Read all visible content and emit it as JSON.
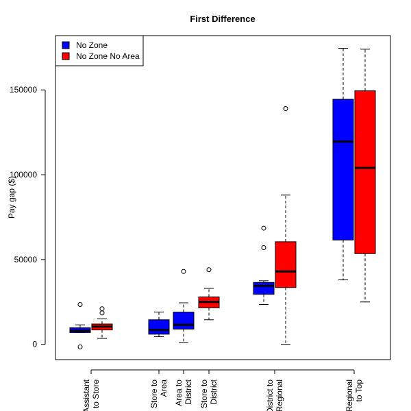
{
  "chart_data": {
    "type": "boxplot",
    "title": "First Difference",
    "xlabel": "",
    "ylabel": "Pay gap ($)",
    "ylim": [
      -9000,
      182000
    ],
    "yticks": [
      0,
      50000,
      100000,
      150000
    ],
    "ytick_labels": [
      "0",
      "50000",
      "100000",
      "150000"
    ],
    "grid": false,
    "legend_placement": "top-left",
    "series": [
      {
        "name": "No Zone",
        "color": "#0000ff"
      },
      {
        "name": "No Zone No Area",
        "color": "#ff0000"
      }
    ],
    "categories": [
      {
        "label": [
          "Assistant",
          "to Store"
        ]
      },
      {
        "label": [
          "Store to",
          "Area"
        ]
      },
      {
        "label": [
          "Area to",
          "District"
        ]
      },
      {
        "label": [
          "Store to",
          "District"
        ]
      },
      {
        "label": [
          "District to",
          "Regional"
        ]
      },
      {
        "label": [
          "Regional",
          "to Top"
        ]
      }
    ],
    "boxes": [
      {
        "series": "No Zone",
        "category": 0,
        "whisker_low": 7000,
        "q1": 7000,
        "median": 8000,
        "q3": 9800,
        "whisker_high": 11500,
        "outliers": [
          23500,
          -1500
        ]
      },
      {
        "series": "No Zone No Area",
        "category": 0,
        "whisker_low": 3500,
        "q1": 8500,
        "median": 10500,
        "q3": 12000,
        "whisker_high": 15000,
        "outliers": [
          21000,
          18500
        ]
      },
      {
        "series": "No Zone",
        "category": 1,
        "whisker_low": 4500,
        "q1": 6000,
        "median": 8500,
        "q3": 14500,
        "whisker_high": 19000,
        "outliers": []
      },
      {
        "series": "No Zone",
        "category": 2,
        "whisker_low": 1000,
        "q1": 9000,
        "median": 11500,
        "q3": 19000,
        "whisker_high": 24500,
        "outliers": [
          43000
        ]
      },
      {
        "series": "No Zone No Area",
        "category": 3,
        "whisker_low": 14500,
        "q1": 21500,
        "median": 25000,
        "q3": 28000,
        "whisker_high": 33000,
        "outliers": [
          44000
        ]
      },
      {
        "series": "No Zone",
        "category": 4,
        "whisker_low": 23500,
        "q1": 29500,
        "median": 34500,
        "q3": 36500,
        "whisker_high": 37500,
        "outliers": [
          68500,
          57000
        ]
      },
      {
        "series": "No Zone No Area",
        "category": 4,
        "whisker_low": 0,
        "q1": 33500,
        "median": 43000,
        "q3": 60500,
        "whisker_high": 88000,
        "outliers": [
          139000
        ]
      },
      {
        "series": "No Zone",
        "category": 5,
        "whisker_low": 38000,
        "q1": 61500,
        "median": 119500,
        "q3": 144500,
        "whisker_high": 174500,
        "outliers": []
      },
      {
        "series": "No Zone No Area",
        "category": 5,
        "whisker_low": 25000,
        "q1": 53500,
        "median": 104000,
        "q3": 149500,
        "whisker_high": 174000,
        "outliers": []
      }
    ]
  }
}
